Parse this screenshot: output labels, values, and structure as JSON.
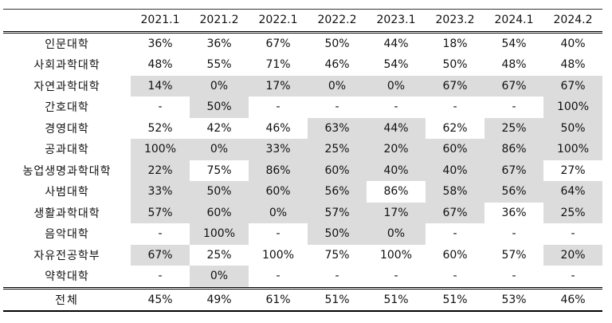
{
  "table": {
    "corner_label": "",
    "columns": [
      "2021.1",
      "2021.2",
      "2022.1",
      "2022.2",
      "2023.1",
      "2023.2",
      "2024.1",
      "2024.2"
    ],
    "rows": [
      {
        "name": "인문대학",
        "values": [
          "36%",
          "36%",
          "67%",
          "50%",
          "44%",
          "18%",
          "54%",
          "40%"
        ],
        "shaded": [
          false,
          false,
          false,
          false,
          false,
          false,
          false,
          false
        ]
      },
      {
        "name": "사회과학대학",
        "values": [
          "48%",
          "55%",
          "71%",
          "46%",
          "54%",
          "50%",
          "48%",
          "48%"
        ],
        "shaded": [
          false,
          false,
          false,
          false,
          false,
          false,
          false,
          false
        ]
      },
      {
        "name": "자연과학대학",
        "values": [
          "14%",
          "0%",
          "17%",
          "0%",
          "0%",
          "67%",
          "67%",
          "67%"
        ],
        "shaded": [
          true,
          true,
          true,
          true,
          true,
          true,
          true,
          true
        ]
      },
      {
        "name": "간호대학",
        "values": [
          "-",
          "50%",
          "-",
          "-",
          "-",
          "-",
          "-",
          "100%"
        ],
        "shaded": [
          false,
          true,
          false,
          false,
          false,
          false,
          false,
          true
        ]
      },
      {
        "name": "경영대학",
        "values": [
          "52%",
          "42%",
          "46%",
          "63%",
          "44%",
          "62%",
          "25%",
          "50%"
        ],
        "shaded": [
          false,
          false,
          false,
          true,
          true,
          false,
          true,
          true
        ]
      },
      {
        "name": "공과대학",
        "values": [
          "100%",
          "0%",
          "33%",
          "25%",
          "20%",
          "60%",
          "86%",
          "100%"
        ],
        "shaded": [
          true,
          true,
          true,
          true,
          true,
          true,
          true,
          true
        ]
      },
      {
        "name": "농업생명과학대학",
        "values": [
          "22%",
          "75%",
          "86%",
          "60%",
          "40%",
          "40%",
          "67%",
          "27%"
        ],
        "shaded": [
          true,
          false,
          true,
          true,
          true,
          true,
          true,
          false
        ]
      },
      {
        "name": "사범대학",
        "values": [
          "33%",
          "50%",
          "60%",
          "56%",
          "86%",
          "58%",
          "56%",
          "64%"
        ],
        "shaded": [
          true,
          true,
          true,
          true,
          false,
          true,
          true,
          true
        ]
      },
      {
        "name": "생활과학대학",
        "values": [
          "57%",
          "60%",
          "0%",
          "57%",
          "17%",
          "67%",
          "36%",
          "25%"
        ],
        "shaded": [
          true,
          true,
          true,
          true,
          true,
          true,
          false,
          true
        ]
      },
      {
        "name": "음악대학",
        "values": [
          "-",
          "100%",
          "-",
          "50%",
          "0%",
          "-",
          "-",
          "-"
        ],
        "shaded": [
          false,
          true,
          false,
          true,
          true,
          false,
          false,
          false
        ]
      },
      {
        "name": "자유전공학부",
        "values": [
          "67%",
          "25%",
          "100%",
          "75%",
          "100%",
          "60%",
          "57%",
          "20%"
        ],
        "shaded": [
          true,
          false,
          false,
          false,
          false,
          false,
          false,
          true
        ]
      },
      {
        "name": "약학대학",
        "values": [
          "-",
          "0%",
          "-",
          "-",
          "-",
          "-",
          "-",
          "-"
        ],
        "shaded": [
          false,
          true,
          false,
          false,
          false,
          false,
          false,
          false
        ]
      }
    ],
    "total": {
      "name": "전체",
      "values": [
        "45%",
        "49%",
        "61%",
        "51%",
        "51%",
        "51%",
        "53%",
        "46%"
      ]
    }
  },
  "colors": {
    "shade": "#dcdcdc",
    "rule": "#000000"
  }
}
